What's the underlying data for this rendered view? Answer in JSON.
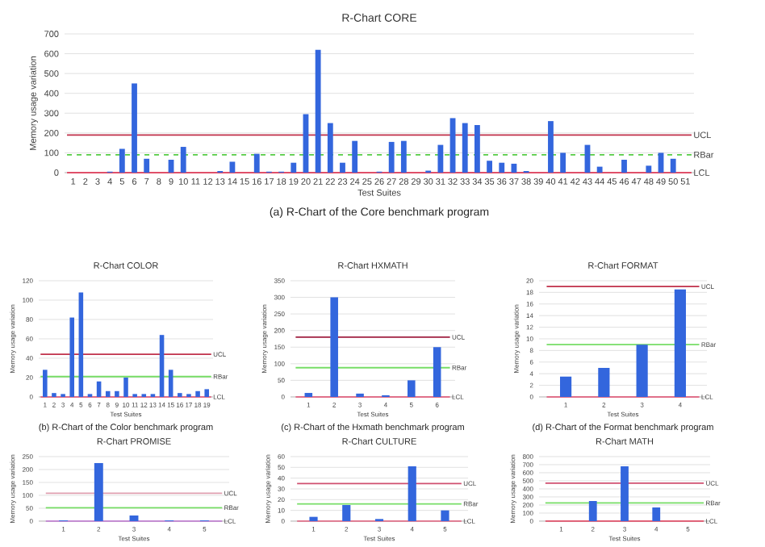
{
  "chart_data": [
    {
      "type": "bar",
      "title": "R-Chart CORE",
      "xlabel": "Test Suites",
      "ylabel": "Memory usage variation",
      "categories": [
        "1",
        "2",
        "3",
        "4",
        "5",
        "6",
        "7",
        "8",
        "9",
        "10",
        "11",
        "12",
        "13",
        "14",
        "15",
        "16",
        "17",
        "18",
        "19",
        "20",
        "21",
        "22",
        "23",
        "24",
        "25",
        "26",
        "27",
        "28",
        "29",
        "30",
        "31",
        "32",
        "33",
        "34",
        "35",
        "36",
        "37",
        "38",
        "39",
        "40",
        "41",
        "42",
        "43",
        "44",
        "45",
        "46",
        "47",
        "48",
        "49",
        "50",
        "51"
      ],
      "values": [
        0,
        0,
        0,
        5,
        120,
        450,
        70,
        0,
        65,
        130,
        0,
        0,
        8,
        55,
        0,
        95,
        5,
        5,
        50,
        295,
        620,
        250,
        50,
        160,
        0,
        5,
        155,
        160,
        0,
        10,
        140,
        275,
        250,
        240,
        60,
        50,
        45,
        8,
        0,
        260,
        100,
        0,
        140,
        30,
        0,
        65,
        0,
        35,
        100,
        70,
        0
      ],
      "color": "#3366dd",
      "ylim": [
        0,
        700
      ],
      "yticks": [
        0,
        100,
        200,
        300,
        400,
        500,
        600,
        700
      ],
      "grid": "y",
      "ref_lines": [
        {
          "axis": "y",
          "value": 190,
          "label": "UCL",
          "color": "#c0304a",
          "line_style": "solid"
        },
        {
          "axis": "y",
          "value": 90,
          "label": "RBar",
          "color": "#55cc44",
          "line_style": "dashed"
        },
        {
          "axis": "y",
          "value": 0,
          "label": "LCL",
          "color": "#e0506a",
          "line_style": "solid"
        }
      ],
      "annotations": [
        "(a) R-Chart of the Core benchmark program"
      ]
    },
    {
      "type": "bar",
      "title": "R-Chart COLOR",
      "xlabel": "Test Suites",
      "ylabel": "Memory usage variation",
      "categories": [
        "1",
        "2",
        "3",
        "4",
        "5",
        "6",
        "7",
        "8",
        "9",
        "10",
        "11",
        "12",
        "13",
        "14",
        "15",
        "16",
        "17",
        "18",
        "19"
      ],
      "values": [
        28,
        4,
        3,
        82,
        108,
        3,
        16,
        6,
        6,
        20,
        3,
        3,
        3,
        64,
        28,
        4,
        3,
        6,
        8
      ],
      "color": "#3366dd",
      "ylim": [
        0,
        120
      ],
      "yticks": [
        0,
        20,
        40,
        60,
        80,
        100,
        120
      ],
      "grid": "y",
      "ref_lines": [
        {
          "axis": "y",
          "value": 44,
          "label": "UCL",
          "color": "#c0304a",
          "line_style": "solid"
        },
        {
          "axis": "y",
          "value": 21,
          "label": "RBar",
          "color": "#77dd66",
          "line_style": "solid"
        },
        {
          "axis": "y",
          "value": 0,
          "label": "LCL",
          "color": "#e0708a",
          "line_style": "solid"
        }
      ],
      "annotations": [
        "(b) R-Chart of the Color benchmark program"
      ]
    },
    {
      "type": "bar",
      "title": "R-Chart HXMATH",
      "xlabel": "Test Suites",
      "ylabel": "Memory usage variation",
      "categories": [
        "1",
        "2",
        "3",
        "4",
        "5",
        "6"
      ],
      "values": [
        12,
        300,
        10,
        5,
        50,
        150
      ],
      "color": "#3366dd",
      "ylim": [
        0,
        350
      ],
      "yticks": [
        0,
        50,
        100,
        150,
        200,
        250,
        300,
        350
      ],
      "grid": "y",
      "ref_lines": [
        {
          "axis": "y",
          "value": 180,
          "label": "UCL",
          "color": "#a02040",
          "line_style": "solid"
        },
        {
          "axis": "y",
          "value": 88,
          "label": "RBar",
          "color": "#77dd66",
          "line_style": "solid"
        },
        {
          "axis": "y",
          "value": 0,
          "label": "LCL",
          "color": "#e0708a",
          "line_style": "solid"
        }
      ],
      "annotations": [
        "(c) R-Chart of the Hxmath benchmark program"
      ]
    },
    {
      "type": "bar",
      "title": "R-Chart FORMAT",
      "xlabel": "Test Suites",
      "ylabel": "Memory usage variation",
      "categories": [
        "1",
        "2",
        "3",
        "4"
      ],
      "values": [
        3.5,
        5,
        9,
        18.5
      ],
      "color": "#3366dd",
      "ylim": [
        0,
        20
      ],
      "yticks": [
        0,
        2,
        4,
        6,
        8,
        10,
        12,
        14,
        16,
        18,
        20
      ],
      "grid": "y",
      "ref_lines": [
        {
          "axis": "y",
          "value": 19,
          "label": "UCL",
          "color": "#c0304a",
          "line_style": "solid"
        },
        {
          "axis": "y",
          "value": 9,
          "label": "RBar",
          "color": "#77dd66",
          "line_style": "solid"
        },
        {
          "axis": "y",
          "value": 0,
          "label": "LCL",
          "color": "#e0708a",
          "line_style": "solid"
        }
      ],
      "annotations": [
        "(d) R-Chart of the Format benchmark program"
      ]
    },
    {
      "type": "bar",
      "title": "R-Chart PROMISE",
      "xlabel": "Test Suites",
      "ylabel": "Memory usage variation",
      "categories": [
        "1",
        "2",
        "3",
        "4",
        "5"
      ],
      "values": [
        3,
        225,
        22,
        3,
        3
      ],
      "color": "#3366dd",
      "ylim": [
        0,
        250
      ],
      "yticks": [
        0,
        50,
        100,
        150,
        200,
        250
      ],
      "grid": "y",
      "ref_lines": [
        {
          "axis": "y",
          "value": 108,
          "label": "UCL",
          "color": "#e0a0b0",
          "line_style": "solid"
        },
        {
          "axis": "y",
          "value": 52,
          "label": "RBar",
          "color": "#77dd66",
          "line_style": "solid"
        },
        {
          "axis": "y",
          "value": 0,
          "label": "LCL",
          "color": "#c080d0",
          "line_style": "solid"
        }
      ]
    },
    {
      "type": "bar",
      "title": "R-Chart CULTURE",
      "xlabel": "Test Suites",
      "ylabel": "Memory usage variation",
      "categories": [
        "1",
        "2",
        "3",
        "4",
        "5"
      ],
      "values": [
        4,
        15,
        2,
        51,
        10
      ],
      "color": "#3366dd",
      "ylim": [
        0,
        60
      ],
      "yticks": [
        0,
        10,
        20,
        30,
        40,
        50,
        60
      ],
      "grid": "y",
      "ref_lines": [
        {
          "axis": "y",
          "value": 35,
          "label": "UCL",
          "color": "#d05070",
          "line_style": "solid"
        },
        {
          "axis": "y",
          "value": 16,
          "label": "RBar",
          "color": "#77dd66",
          "line_style": "solid"
        },
        {
          "axis": "y",
          "value": 0,
          "label": "LCL",
          "color": "#e0708a",
          "line_style": "solid"
        }
      ]
    },
    {
      "type": "bar",
      "title": "R-Chart MATH",
      "xlabel": "Test Suites",
      "ylabel": "Memory usage variation",
      "categories": [
        "1",
        "2",
        "3",
        "4",
        "5"
      ],
      "values": [
        0,
        250,
        680,
        170,
        0
      ],
      "color": "#3366dd",
      "ylim": [
        0,
        800
      ],
      "yticks": [
        0,
        100,
        200,
        300,
        400,
        500,
        600,
        700,
        800
      ],
      "grid": "y",
      "ref_lines": [
        {
          "axis": "y",
          "value": 470,
          "label": "UCL",
          "color": "#d05070",
          "line_style": "solid"
        },
        {
          "axis": "y",
          "value": 225,
          "label": "RBar",
          "color": "#77dd66",
          "line_style": "solid"
        },
        {
          "axis": "y",
          "value": 0,
          "label": "LCL",
          "color": "#e0506a",
          "line_style": "solid"
        }
      ]
    }
  ]
}
